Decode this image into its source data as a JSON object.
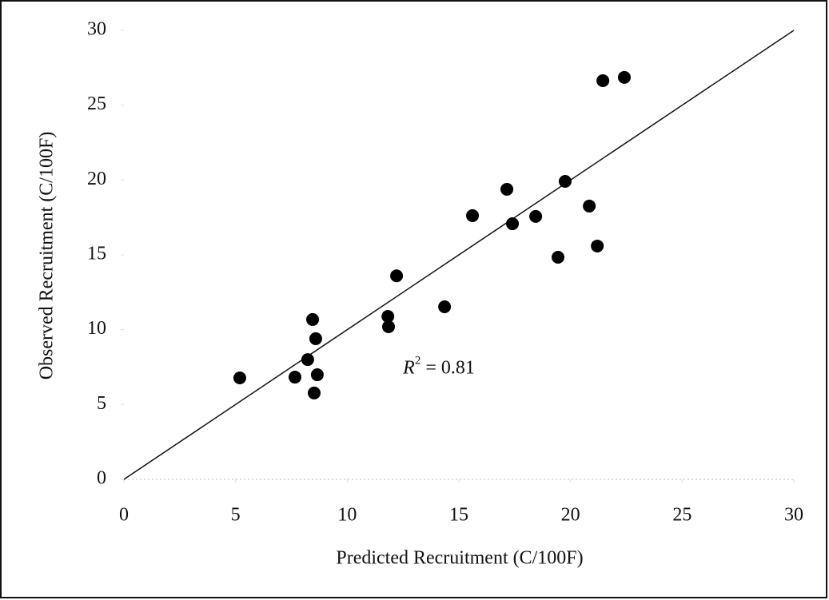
{
  "chart_data": {
    "type": "scatter",
    "x_label": "Predicted Recruitment (C/100F)",
    "y_label": "Observed  Recruitment (C/100F)",
    "color": "#000000",
    "x": [
      5.19,
      7.66,
      8.23,
      8.45,
      8.59,
      8.66,
      8.52,
      11.82,
      11.85,
      12.21,
      14.36,
      15.61,
      17.15,
      17.4,
      18.44,
      19.44,
      19.76,
      20.84,
      21.2,
      21.45,
      22.41
    ],
    "y": [
      6.78,
      6.83,
      8.0,
      10.68,
      9.4,
      6.99,
      5.77,
      10.89,
      10.2,
      13.6,
      11.53,
      17.62,
      19.38,
      17.08,
      17.57,
      14.84,
      19.91,
      18.26,
      15.59,
      26.64,
      26.86
    ],
    "reference_line": {
      "x": [
        0,
        30
      ],
      "y": [
        0,
        30
      ]
    },
    "annotation": {
      "variable": "R",
      "exponent": "2",
      "text": "= 0.81",
      "x": 12.5,
      "y": 7.4
    },
    "xlim": [
      0,
      30
    ],
    "ylim": [
      0,
      30
    ],
    "xticks": [
      0,
      5,
      10,
      15,
      20,
      25,
      30
    ],
    "yticks": [
      0,
      5,
      10,
      15,
      20,
      25,
      30
    ]
  }
}
